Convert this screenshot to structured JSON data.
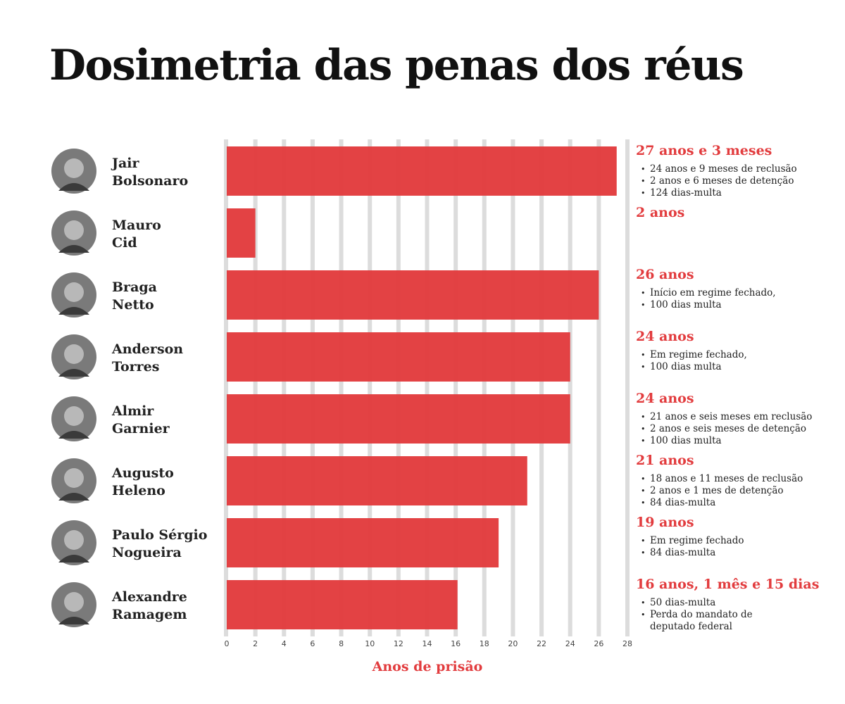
{
  "chart_data": {
    "type": "barh",
    "title": "Dosimetria das penas dos réus",
    "x_label": "Anos de prisão",
    "categories": [
      "Jair\nBolsonaro",
      "Mauro\nCid",
      "Braga\nNetto",
      "Anderson\nTorres",
      "Almir\nGarnier",
      "Augusto\nHeleno",
      "Paulo Sérgio\nNogueira",
      "Alexandre\nRamagem"
    ],
    "values": [
      27.25,
      2,
      26,
      24,
      24,
      21,
      19,
      16.125
    ],
    "value_labels": [
      "27 anos e 3 meses",
      "2 anos",
      "26 anos",
      "24 anos",
      "24 anos",
      "21 anos",
      "19 anos",
      "16 anos, 1 mês e 15 dias"
    ],
    "notes": [
      [
        "24 anos e 9 meses de reclusão",
        "2 anos e 6 meses de detenção",
        "124 dias-multa"
      ],
      [],
      [
        "Início em regime fechado,",
        "100 dias multa"
      ],
      [
        "Em regime fechado,",
        "100 dias multa"
      ],
      [
        "21 anos e seis meses em reclusão",
        "2 anos e seis meses de detenção",
        "100 dias multa"
      ],
      [
        "18 anos e 11 meses de reclusão",
        "2 anos e 1 mes de detenção",
        "84 dias-multa"
      ],
      [
        "Em regime fechado",
        "84 dias-multa"
      ],
      [
        "50 dias-multa",
        "Perda do mandato de\ndeputado federal"
      ]
    ],
    "color": "#e23c3e",
    "xlim": [
      0,
      28
    ],
    "xticks": [
      0,
      2,
      4,
      6,
      8,
      10,
      12,
      14,
      16,
      18,
      20,
      22,
      24,
      26,
      28
    ],
    "grid": true
  }
}
